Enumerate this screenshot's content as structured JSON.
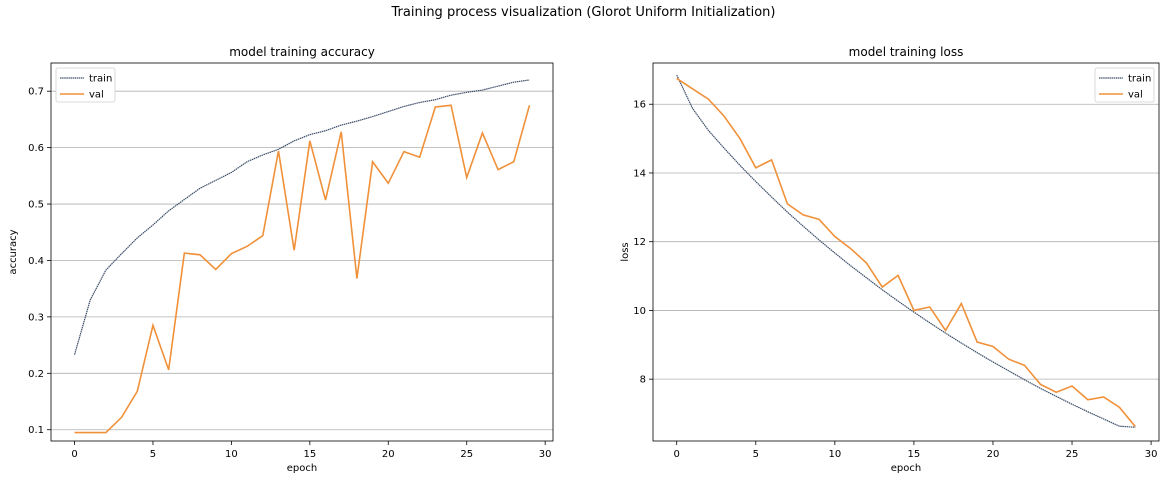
{
  "figure_title": "Training process visualization (Glorot Uniform Initialization)",
  "colors": {
    "train": "#3d4f6a",
    "val": "#f0913a",
    "grid": "#b0b0b0"
  },
  "chart_data": [
    {
      "type": "line",
      "title": "model training accuracy",
      "xlabel": "epoch",
      "ylabel": "accuracy",
      "xlim": [
        -1.5,
        30.5
      ],
      "ylim": [
        0.08,
        0.75
      ],
      "xticks": [
        0,
        5,
        10,
        15,
        20,
        25,
        30
      ],
      "yticks": [
        0.1,
        0.2,
        0.3,
        0.4,
        0.5,
        0.6,
        0.7
      ],
      "ytick_labels": [
        "0.1",
        "0.2",
        "0.3",
        "0.4",
        "0.5",
        "0.6",
        "0.7"
      ],
      "grid": "horizontal",
      "legend_position": "top-left",
      "x": [
        0,
        1,
        2,
        3,
        4,
        5,
        6,
        7,
        8,
        9,
        10,
        11,
        12,
        13,
        14,
        15,
        16,
        17,
        18,
        19,
        20,
        21,
        22,
        23,
        24,
        25,
        26,
        27,
        28,
        29
      ],
      "series": [
        {
          "name": "train",
          "values": [
            0.233,
            0.33,
            0.383,
            0.412,
            0.44,
            0.463,
            0.488,
            0.508,
            0.528,
            0.542,
            0.556,
            0.575,
            0.587,
            0.597,
            0.612,
            0.623,
            0.63,
            0.64,
            0.647,
            0.655,
            0.664,
            0.673,
            0.68,
            0.685,
            0.693,
            0.698,
            0.702,
            0.709,
            0.716,
            0.72
          ]
        },
        {
          "name": "val",
          "values": [
            0.095,
            0.095,
            0.095,
            0.122,
            0.168,
            0.285,
            0.206,
            0.413,
            0.41,
            0.384,
            0.412,
            0.425,
            0.444,
            0.594,
            0.418,
            0.612,
            0.507,
            0.628,
            0.368,
            0.575,
            0.537,
            0.593,
            0.583,
            0.672,
            0.675,
            0.547,
            0.626,
            0.561,
            0.575,
            0.675
          ]
        }
      ]
    },
    {
      "type": "line",
      "title": "model training loss",
      "xlabel": "epoch",
      "ylabel": "loss",
      "xlim": [
        -1.5,
        30.5
      ],
      "ylim": [
        6.2,
        17.2
      ],
      "xticks": [
        0,
        5,
        10,
        15,
        20,
        25,
        30
      ],
      "yticks": [
        8,
        10,
        12,
        14,
        16
      ],
      "ytick_labels": [
        "8",
        "10",
        "12",
        "14",
        "16"
      ],
      "grid": "horizontal",
      "legend_position": "top-right",
      "x": [
        0,
        1,
        2,
        3,
        4,
        5,
        6,
        7,
        8,
        9,
        10,
        11,
        12,
        13,
        14,
        15,
        16,
        17,
        18,
        19,
        20,
        21,
        22,
        23,
        24,
        25,
        26,
        27,
        28,
        29
      ],
      "series": [
        {
          "name": "train",
          "values": [
            16.85,
            15.88,
            15.24,
            14.72,
            14.22,
            13.75,
            13.3,
            12.86,
            12.45,
            12.05,
            11.67,
            11.3,
            10.95,
            10.6,
            10.27,
            9.95,
            9.64,
            9.34,
            9.05,
            8.77,
            8.5,
            8.24,
            7.98,
            7.73,
            7.5,
            7.27,
            7.05,
            6.84,
            6.63,
            6.6
          ]
        },
        {
          "name": "val",
          "values": [
            16.75,
            16.45,
            16.15,
            15.65,
            15.0,
            14.15,
            14.38,
            13.1,
            12.78,
            12.65,
            12.15,
            11.8,
            11.38,
            10.68,
            11.02,
            10.0,
            10.1,
            9.42,
            10.2,
            9.08,
            8.95,
            8.58,
            8.4,
            7.85,
            7.62,
            7.8,
            7.4,
            7.48,
            7.18,
            6.62
          ]
        }
      ]
    }
  ]
}
